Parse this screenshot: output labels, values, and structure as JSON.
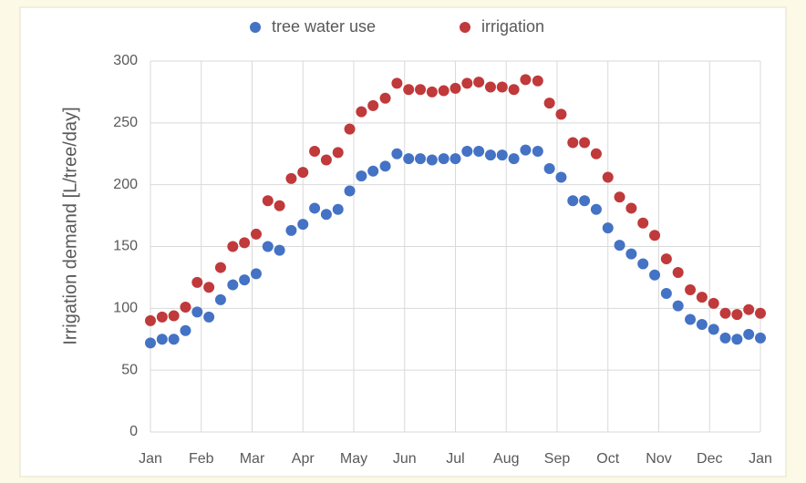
{
  "chart_data": {
    "type": "scatter",
    "ylabel": "Irrigation demand [L/tree/day]",
    "x": [
      0,
      0.23,
      0.46,
      0.69,
      0.92,
      1.15,
      1.38,
      1.62,
      1.85,
      2.08,
      2.31,
      2.54,
      2.77,
      3,
      3.23,
      3.46,
      3.69,
      3.92,
      4.15,
      4.38,
      4.62,
      4.85,
      5.08,
      5.31,
      5.54,
      5.77,
      6,
      6.23,
      6.46,
      6.69,
      6.92,
      7.15,
      7.38,
      7.62,
      7.85,
      8.08,
      8.31,
      8.54,
      8.77,
      9,
      9.23,
      9.46,
      9.69,
      9.92,
      10.15,
      10.38,
      10.62,
      10.85,
      11.08,
      11.31,
      11.54,
      11.77,
      12
    ],
    "series": [
      {
        "name": "tree water use",
        "color": "#4472c4",
        "values": [
          72,
          75,
          75,
          82,
          97,
          93,
          107,
          119,
          123,
          128,
          150,
          147,
          163,
          168,
          181,
          176,
          180,
          195,
          207,
          211,
          215,
          225,
          221,
          221,
          220,
          221,
          221,
          227,
          227,
          224,
          224,
          221,
          228,
          227,
          213,
          206,
          187,
          187,
          180,
          165,
          151,
          144,
          136,
          127,
          112,
          102,
          91,
          87,
          83,
          76,
          75,
          79,
          76
        ]
      },
      {
        "name": "irrigation",
        "color": "#c0393b",
        "values": [
          90,
          93,
          94,
          101,
          121,
          117,
          133,
          150,
          153,
          160,
          187,
          183,
          205,
          210,
          227,
          220,
          226,
          245,
          259,
          264,
          270,
          282,
          277,
          277,
          275,
          276,
          278,
          282,
          283,
          279,
          279,
          277,
          285,
          284,
          266,
          257,
          234,
          234,
          225,
          206,
          190,
          181,
          169,
          159,
          140,
          129,
          115,
          109,
          104,
          96,
          95,
          99,
          96
        ]
      }
    ],
    "xlim": [
      0,
      12
    ],
    "xticks": [
      {
        "value": 0,
        "label": "Jan"
      },
      {
        "value": 1,
        "label": "Feb"
      },
      {
        "value": 2,
        "label": "Mar"
      },
      {
        "value": 3,
        "label": "Apr"
      },
      {
        "value": 4,
        "label": "May"
      },
      {
        "value": 5,
        "label": "Jun"
      },
      {
        "value": 6,
        "label": "Jul"
      },
      {
        "value": 7,
        "label": "Aug"
      },
      {
        "value": 8,
        "label": "Sep"
      },
      {
        "value": 9,
        "label": "Oct"
      },
      {
        "value": 10,
        "label": "Nov"
      },
      {
        "value": 11,
        "label": "Dec"
      },
      {
        "value": 12,
        "label": "Jan"
      }
    ],
    "ylim": [
      0,
      300
    ],
    "yticks": [
      0,
      50,
      100,
      150,
      200,
      250,
      300
    ],
    "grid": true,
    "legend": "top"
  }
}
